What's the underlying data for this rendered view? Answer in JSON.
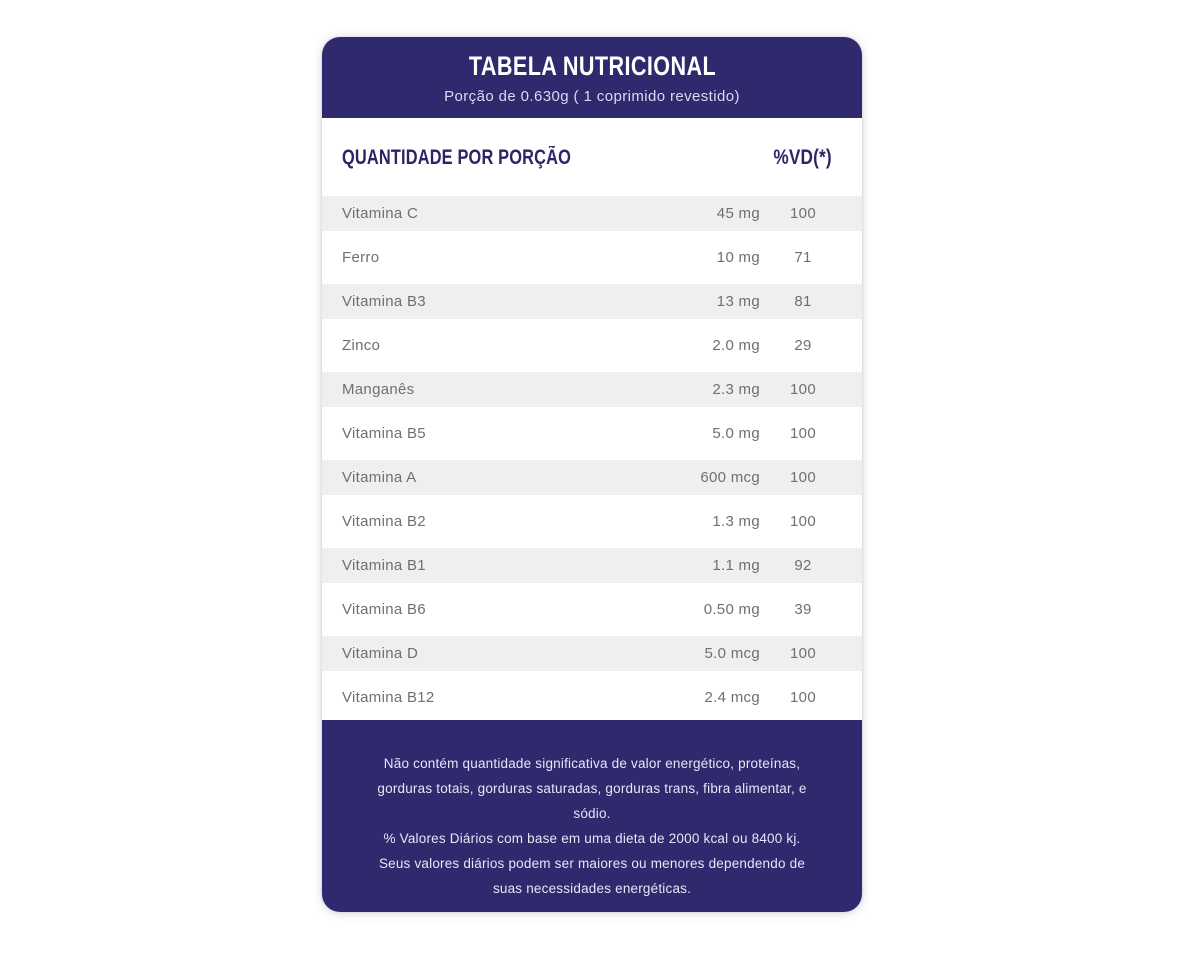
{
  "card": {
    "header": {
      "title": "TABELA NUTRICIONAL",
      "subtitle": "Porção de 0.630g ( 1 coprimido revestido)"
    },
    "table": {
      "columns": {
        "amount_header": "QUANTIDADE POR PORÇÃO",
        "vd_header": "%VD(*)"
      },
      "rows": [
        {
          "name": "Vitamina C",
          "amount": "45 mg",
          "vd": "100"
        },
        {
          "name": "Ferro",
          "amount": "10 mg",
          "vd": "71"
        },
        {
          "name": "Vitamina B3",
          "amount": "13 mg",
          "vd": "81"
        },
        {
          "name": "Zinco",
          "amount": "2.0 mg",
          "vd": "29"
        },
        {
          "name": "Manganês",
          "amount": "2.3 mg",
          "vd": "100"
        },
        {
          "name": "Vitamina B5",
          "amount": "5.0 mg",
          "vd": "100"
        },
        {
          "name": "Vitamina A",
          "amount": "600 mcg",
          "vd": "100"
        },
        {
          "name": "Vitamina B2",
          "amount": "1.3 mg",
          "vd": "100"
        },
        {
          "name": "Vitamina B1",
          "amount": "1.1 mg",
          "vd": "92"
        },
        {
          "name": "Vitamina B6",
          "amount": "0.50 mg",
          "vd": "39"
        },
        {
          "name": "Vitamina D",
          "amount": "5.0 mcg",
          "vd": "100"
        },
        {
          "name": "Vitamina B12",
          "amount": "2.4 mcg",
          "vd": "100"
        }
      ]
    },
    "footer": {
      "note1": "Não contém quantidade significativa de valor energético, proteínas, gorduras totais, gorduras saturadas, gorduras trans, fibra alimentar, e sódio.",
      "note2": "% Valores Diários com base em uma dieta de 2000 kcal ou 8400 kj. Seus valores diários podem ser maiores ou menores dependendo de suas necessidades energéticas."
    }
  },
  "colors": {
    "navy": "#2f2a6e",
    "row_stripe": "#f0efef",
    "row_text": "#6f6f6f",
    "header_text": "#2b2566"
  }
}
